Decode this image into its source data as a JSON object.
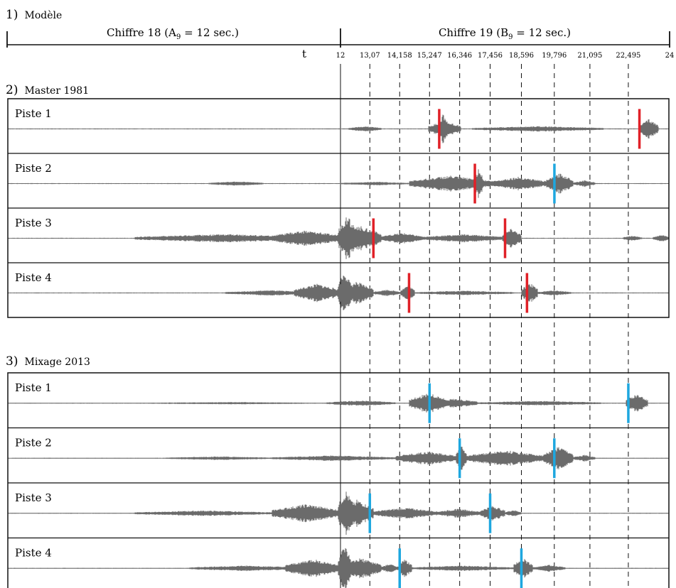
{
  "model": {
    "section_number": "1)",
    "section_name": "Modèle",
    "chiffre_18": {
      "label": "Chiffre 18 (A",
      "sub": "9",
      "rest": " = 12 sec.)"
    },
    "chiffre_19": {
      "label": "Chiffre 19 (B",
      "sub": "9",
      "rest": " = 12 sec.)"
    },
    "t_label": "t",
    "ticks": [
      {
        "value": 12,
        "label": "12"
      },
      {
        "value": 13.07,
        "label": "13,07"
      },
      {
        "value": 14.158,
        "label": "14,158"
      },
      {
        "value": 15.247,
        "label": "15,247"
      },
      {
        "value": 16.346,
        "label": "16,346"
      },
      {
        "value": 17.456,
        "label": "17,456"
      },
      {
        "value": 18.596,
        "label": "18,596"
      },
      {
        "value": 19.796,
        "label": "19,796"
      },
      {
        "value": 21.095,
        "label": "21,095"
      },
      {
        "value": 22.495,
        "label": "22,495"
      },
      {
        "value": 24,
        "label": "24"
      }
    ]
  },
  "master": {
    "section_number": "2)",
    "section_name": "Master 1981",
    "tracks": [
      {
        "label": "Piste 1",
        "bursts": [
          [
            12.3,
            13.5,
            0.12
          ],
          [
            15.6,
            15.9,
            0.7
          ],
          [
            15.2,
            16.4,
            0.35
          ],
          [
            16.8,
            21.6,
            0.12
          ],
          [
            22.9,
            23.6,
            0.45
          ]
        ],
        "markers": [
          {
            "t": 15.6,
            "color": "#e02128"
          },
          {
            "t": 22.9,
            "color": "#e02128"
          }
        ]
      },
      {
        "label": "Piste 2",
        "bursts": [
          [
            7.2,
            9.2,
            0.1
          ],
          [
            12.0,
            14.5,
            0.08
          ],
          [
            14.5,
            17.5,
            0.35
          ],
          [
            16.9,
            17.2,
            0.7
          ],
          [
            17.5,
            19.5,
            0.3
          ],
          [
            19.5,
            20.5,
            0.45
          ],
          [
            20.5,
            21.3,
            0.15
          ]
        ],
        "markers": [
          {
            "t": 16.9,
            "color": "#e02128"
          },
          {
            "t": 19.8,
            "color": "#1ea7df"
          }
        ]
      },
      {
        "label": "Piste 3",
        "bursts": [
          [
            4.5,
            11.0,
            0.18
          ],
          [
            9.5,
            12.0,
            0.35
          ],
          [
            11.9,
            12.6,
            1.0
          ],
          [
            12.0,
            13.5,
            0.55
          ],
          [
            13.5,
            15.0,
            0.25
          ],
          [
            15.0,
            18.0,
            0.18
          ],
          [
            17.9,
            18.6,
            0.45
          ],
          [
            22.3,
            23.0,
            0.12
          ],
          [
            23.4,
            24.0,
            0.15
          ]
        ],
        "markers": [
          {
            "t": 13.2,
            "color": "#e02128"
          },
          {
            "t": 18.0,
            "color": "#e02128"
          }
        ]
      },
      {
        "label": "Piste 4",
        "bursts": [
          [
            7.8,
            11.0,
            0.12
          ],
          [
            10.3,
            12.0,
            0.4
          ],
          [
            11.9,
            12.4,
            1.0
          ],
          [
            12.0,
            13.2,
            0.5
          ],
          [
            13.2,
            14.2,
            0.15
          ],
          [
            14.2,
            14.7,
            0.35
          ],
          [
            14.7,
            18.3,
            0.1
          ],
          [
            18.6,
            19.2,
            0.45
          ],
          [
            19.2,
            20.4,
            0.12
          ]
        ],
        "markers": [
          {
            "t": 14.5,
            "color": "#e02128"
          },
          {
            "t": 18.8,
            "color": "#e02128"
          }
        ]
      }
    ]
  },
  "mix": {
    "section_number": "3)",
    "section_name": "Mixage 2013",
    "tracks": [
      {
        "label": "Piste 1",
        "bursts": [
          [
            4.5,
            11.5,
            0.05
          ],
          [
            11.5,
            14.0,
            0.12
          ],
          [
            14.5,
            15.9,
            0.45
          ],
          [
            15.3,
            17.0,
            0.2
          ],
          [
            17.0,
            21.5,
            0.1
          ],
          [
            22.4,
            23.2,
            0.4
          ]
        ],
        "markers": [
          {
            "t": 15.247,
            "color": "#1ea7df"
          },
          {
            "t": 22.495,
            "color": "#1ea7df"
          }
        ]
      },
      {
        "label": "Piste 2",
        "bursts": [
          [
            5.6,
            9.5,
            0.08
          ],
          [
            9.5,
            14.0,
            0.12
          ],
          [
            14.0,
            16.3,
            0.3
          ],
          [
            16.2,
            16.6,
            0.6
          ],
          [
            16.6,
            19.4,
            0.35
          ],
          [
            19.4,
            20.5,
            0.5
          ],
          [
            20.5,
            21.3,
            0.15
          ]
        ],
        "markers": [
          {
            "t": 16.346,
            "color": "#1ea7df"
          },
          {
            "t": 19.796,
            "color": "#1ea7df"
          }
        ]
      },
      {
        "label": "Piste 3",
        "bursts": [
          [
            4.5,
            9.5,
            0.12
          ],
          [
            9.5,
            12.0,
            0.4
          ],
          [
            11.9,
            12.5,
            1.0
          ],
          [
            12.0,
            13.2,
            0.6
          ],
          [
            13.2,
            15.5,
            0.25
          ],
          [
            15.5,
            17.1,
            0.2
          ],
          [
            17.1,
            18.0,
            0.35
          ],
          [
            18.0,
            18.6,
            0.15
          ]
        ],
        "markers": [
          {
            "t": 13.07,
            "color": "#1ea7df"
          },
          {
            "t": 17.456,
            "color": "#1ea7df"
          }
        ]
      },
      {
        "label": "Piste 4",
        "bursts": [
          [
            6.5,
            10.5,
            0.12
          ],
          [
            10.0,
            12.0,
            0.4
          ],
          [
            11.9,
            12.4,
            1.0
          ],
          [
            12.0,
            13.5,
            0.45
          ],
          [
            13.5,
            14.1,
            0.2
          ],
          [
            14.1,
            14.6,
            0.4
          ],
          [
            14.6,
            18.3,
            0.12
          ],
          [
            18.3,
            19.0,
            0.45
          ],
          [
            19.0,
            20.2,
            0.15
          ]
        ],
        "markers": [
          {
            "t": 14.158,
            "color": "#1ea7df"
          },
          {
            "t": 18.596,
            "color": "#1ea7df"
          }
        ]
      }
    ]
  },
  "colors": {
    "red_marker": "#e02128",
    "blue_marker": "#1ea7df",
    "waveform": "#6b6b6b",
    "centerline": "#b8b8b8"
  }
}
